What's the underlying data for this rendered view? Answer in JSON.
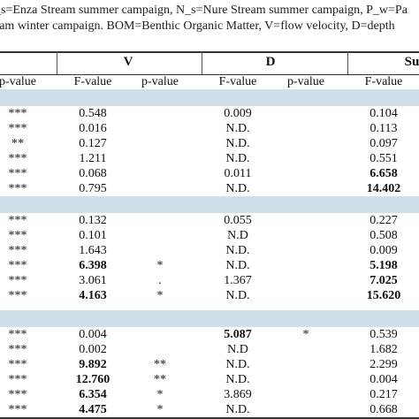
{
  "caption": {
    "line1": "_s=Enza Stream summer campaign, N_s=Nure Stream summer campaign, P_w=Pa",
    "line2": "eam winter campaign. BOM=Benthic Organic Matter, V=flow velocity, D=depth"
  },
  "groups": {
    "v": "V",
    "d": "D",
    "su": "Su"
  },
  "headers": [
    "p-value",
    "F-value",
    "p-value",
    "F-value",
    "p-value",
    "F-value"
  ],
  "sections": [
    {
      "rows": [
        [
          "***",
          "0.548",
          "",
          "0.009",
          "",
          "0.104"
        ],
        [
          "***",
          "0.016",
          "",
          "N.D.",
          "",
          "0.113"
        ],
        [
          "**",
          "0.127",
          "",
          "N.D.",
          "",
          "0.097"
        ],
        [
          "***",
          "1.211",
          "",
          "N.D.",
          "",
          "0.551"
        ],
        [
          "***",
          "0.068",
          "",
          "0.011",
          "",
          "6.658"
        ],
        [
          "***",
          "0.795",
          "",
          "N.D.",
          "",
          "14.402"
        ]
      ]
    },
    {
      "rows": [
        [
          "***",
          "0.132",
          "",
          "0.055",
          "",
          "0.227"
        ],
        [
          "***",
          "0.101",
          "",
          "N.D",
          "",
          "0.508"
        ],
        [
          "***",
          "1.643",
          "",
          "N.D.",
          "",
          "0.009"
        ],
        [
          "***",
          "6.398",
          "*",
          "N.D.",
          "",
          "5.198"
        ],
        [
          "***",
          "3.061",
          ".",
          "1.367",
          "",
          "7.025"
        ],
        [
          "***",
          "4.163",
          "*",
          "N.D.",
          "",
          "15.620"
        ]
      ]
    },
    {
      "rows": [
        [
          "***",
          "0.004",
          "",
          "5.087",
          "*",
          "0.539"
        ],
        [
          "***",
          "0.002",
          "",
          "N.D",
          "",
          "1.682"
        ],
        [
          "***",
          "9.892",
          "**",
          "N.D.",
          "",
          "2.299"
        ],
        [
          "***",
          "12.760",
          "**",
          "N.D.",
          "",
          "0.004"
        ],
        [
          "***",
          "6.354",
          "*",
          "3.869",
          "",
          "0.217"
        ],
        [
          "***",
          "4.475",
          "*",
          "N.D.",
          "",
          "0.668"
        ]
      ]
    }
  ]
}
